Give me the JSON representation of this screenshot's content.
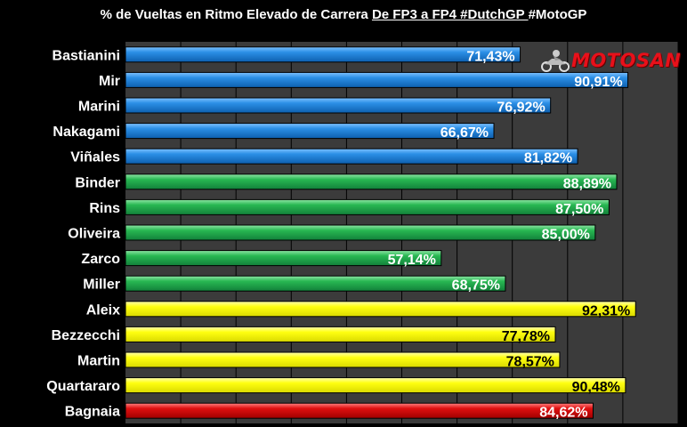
{
  "header": {
    "title_prefix": "% de Vueltas en Ritmo Elevado de Carrera ",
    "title_underlined": "De FP3 a FP4 #DutchGP ",
    "title_suffix": "#MotoGP"
  },
  "logo": {
    "text": "MOTOSAN",
    "icon": "motorcycle-rider-icon"
  },
  "colors": {
    "background": "#000000",
    "plot_area": "#3b3b3b",
    "grid": "#000000",
    "blue": "#1f86dc",
    "green": "#22b14c",
    "yellow": "#ffff00",
    "red": "#d40000"
  },
  "chart_data": {
    "type": "bar",
    "orientation": "horizontal",
    "title": "% de Vueltas en Ritmo Elevado de Carrera De FP3 a FP4 #DutchGP #MotoGP",
    "xlim": [
      0,
      100
    ],
    "grid": true,
    "categories": [
      "Bastianini",
      "Mir",
      "Marini",
      "Nakagami",
      "Viñales",
      "Binder",
      "Rins",
      "Oliveira",
      "Zarco",
      "Miller",
      "Aleix",
      "Bezzecchi",
      "Martin",
      "Quartararo",
      "Bagnaia"
    ],
    "values": [
      71.43,
      90.91,
      76.92,
      66.67,
      81.82,
      88.89,
      87.5,
      85.0,
      57.14,
      68.75,
      92.31,
      77.78,
      78.57,
      90.48,
      84.62
    ],
    "labels": [
      "71,43%",
      "90,91%",
      "76,92%",
      "66,67%",
      "81,82%",
      "88,89%",
      "87,50%",
      "85,00%",
      "57,14%",
      "68,75%",
      "92,31%",
      "77,78%",
      "78,57%",
      "90,48%",
      "84,62%"
    ],
    "bar_colors": [
      "blue",
      "blue",
      "blue",
      "blue",
      "blue",
      "green",
      "green",
      "green",
      "green",
      "green",
      "yellow",
      "yellow",
      "yellow",
      "yellow",
      "red"
    ]
  }
}
